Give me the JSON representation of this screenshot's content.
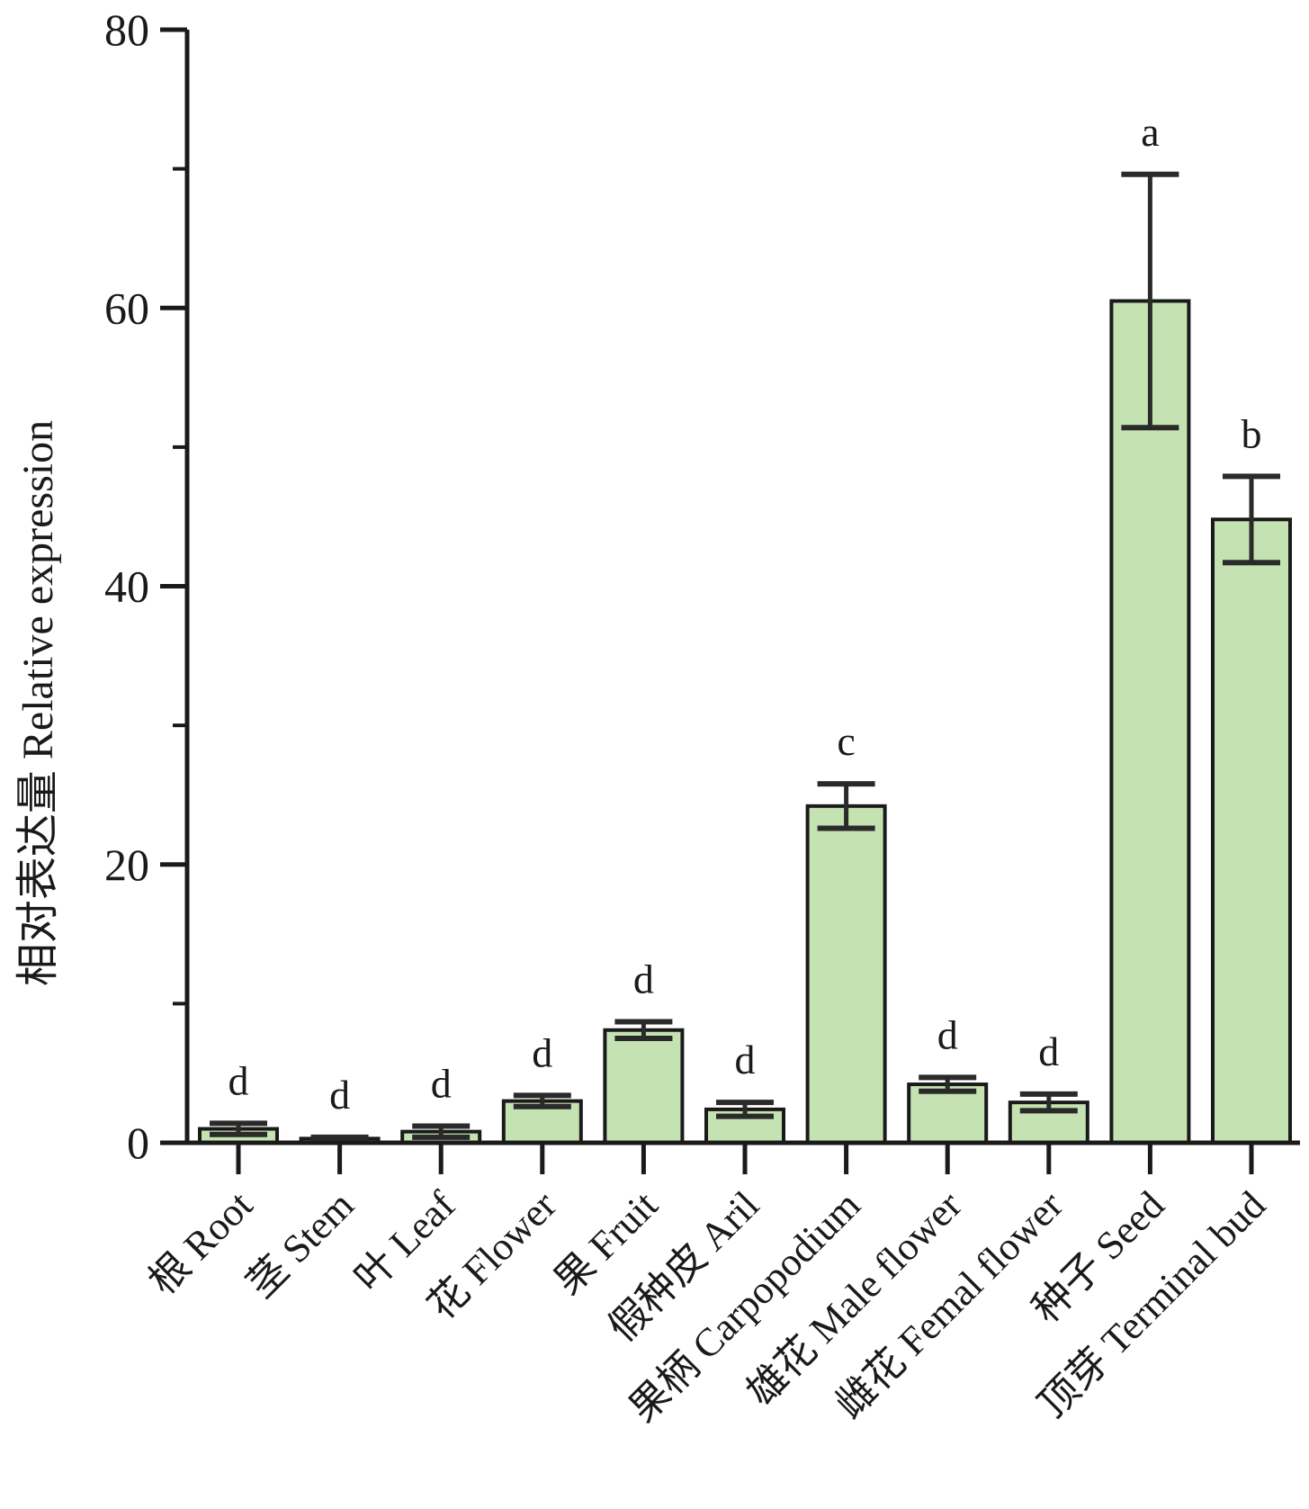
{
  "chart_data": {
    "type": "bar",
    "title": "",
    "xlabel": "",
    "ylabel": "相对表达量 Relative expression",
    "ylim": [
      0,
      80
    ],
    "yticks": [
      0,
      20,
      40,
      60,
      80
    ],
    "minor_yticks": [
      10,
      30,
      50,
      70
    ],
    "grid": false,
    "legend": "none",
    "categories": [
      "根 Root",
      "茎 Stem",
      "叶 Leaf",
      "花 Flower",
      "果 Fruit",
      "假种皮 Aril",
      "果柄 Carpopodium",
      "雄花 Male flower",
      "雌花 Femal flower",
      "种子 Seed",
      "顶芽 Terminal bud"
    ],
    "values": [
      1.0,
      0.3,
      0.8,
      3.0,
      8.1,
      2.4,
      24.2,
      4.2,
      2.9,
      60.5,
      44.8
    ],
    "errors": [
      0.4,
      0.1,
      0.4,
      0.4,
      0.6,
      0.5,
      1.6,
      0.5,
      0.6,
      9.1,
      3.1
    ],
    "significance": [
      "d",
      "d",
      "d",
      "d",
      "d",
      "d",
      "c",
      "d",
      "d",
      "a",
      "b"
    ],
    "colors": {
      "bar_fill": "#c5e3b2",
      "bar_stroke": "#1a1a1a",
      "error_bar": "#2a2a2a",
      "axis": "#1a1a1a"
    }
  }
}
